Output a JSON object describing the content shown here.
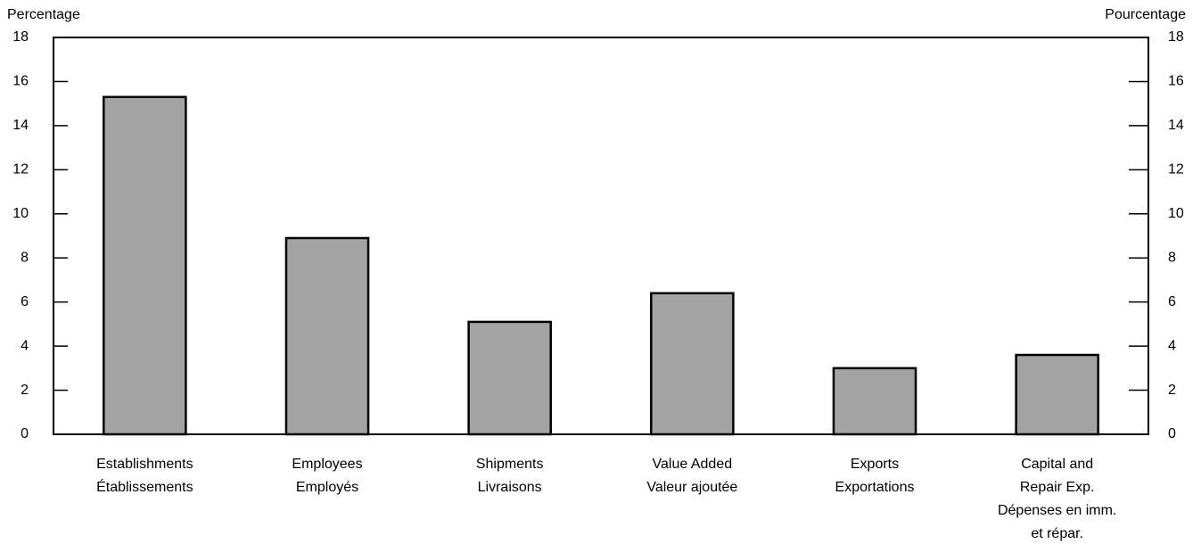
{
  "chart_data": {
    "type": "bar",
    "y_label": "Percentage",
    "y2_label": "Pourcentage",
    "categories": [
      [
        "Establishments",
        "Établissements"
      ],
      [
        "Employees",
        "Employés"
      ],
      [
        "Shipments",
        "Livraisons"
      ],
      [
        "Value Added",
        "Valeur ajoutée"
      ],
      [
        "Exports",
        "Exportations"
      ],
      [
        "Capital and",
        "Repair Exp.",
        "Dépenses en imm.",
        "et répar."
      ]
    ],
    "values": [
      15.3,
      8.9,
      5.1,
      6.4,
      3.0,
      3.6
    ],
    "color": "#a3a3a3",
    "ylim": [
      0,
      18
    ],
    "yticks": [
      0,
      2,
      4,
      6,
      8,
      10,
      12,
      14,
      16,
      18
    ],
    "y2lim": [
      0,
      18
    ],
    "y2ticks": [
      0,
      2,
      4,
      6,
      8,
      10,
      12,
      14,
      16,
      18
    ],
    "grid": false
  }
}
